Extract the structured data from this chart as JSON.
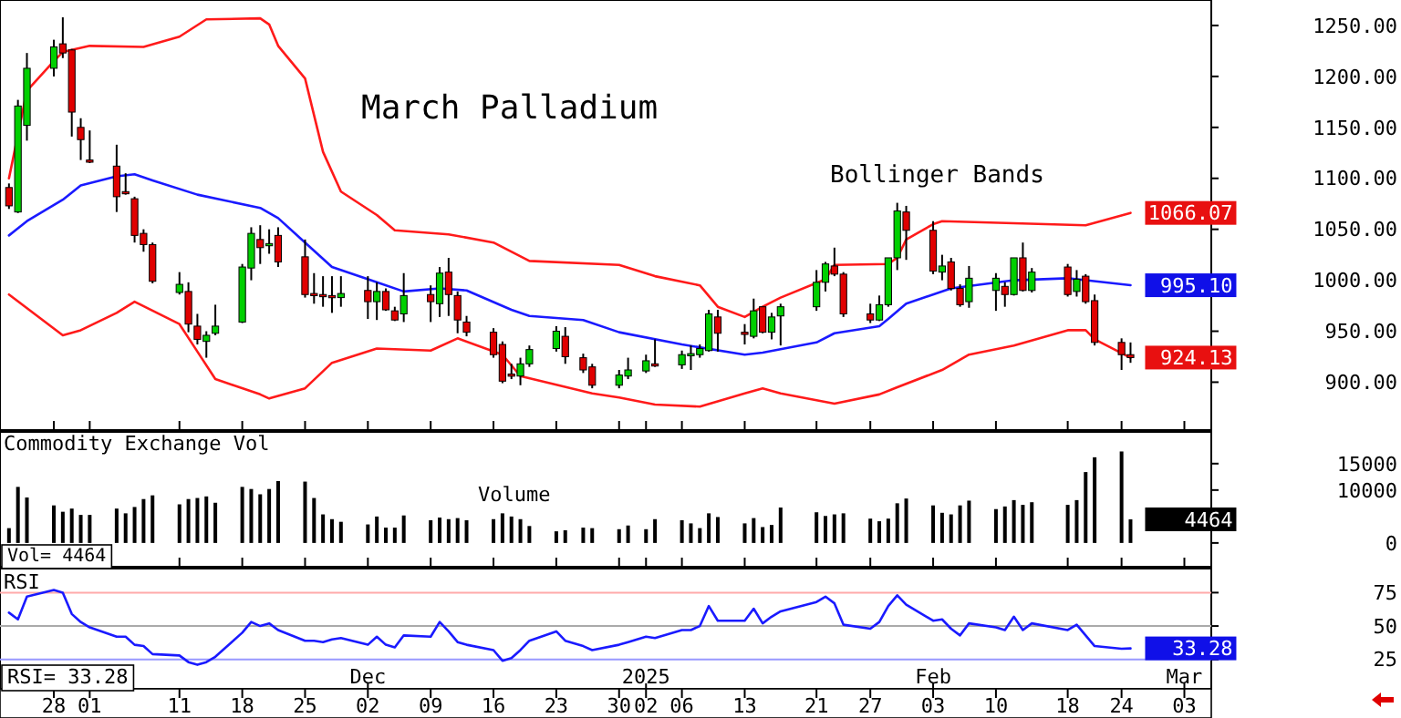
{
  "chart_data": [
    {
      "type": "candlestick",
      "title": "March Palladium",
      "annotations": [
        "Bollinger Bands",
        {
          "text": "1066.07",
          "x": "2025-02-25",
          "y": 1066.07
        },
        {
          "text": "995.10",
          "x": "2025-02-25",
          "y": 995.1
        },
        {
          "text": "924.13",
          "x": "2025-02-25",
          "y": 924.13
        }
      ],
      "x": [
        "2024-10-23",
        "2024-10-24",
        "2024-10-25",
        "2024-10-28",
        "2024-10-29",
        "2024-10-30",
        "2024-10-31",
        "2024-11-01",
        "2024-11-04",
        "2024-11-05",
        "2024-11-06",
        "2024-11-07",
        "2024-11-08",
        "2024-11-11",
        "2024-11-12",
        "2024-11-13",
        "2024-11-14",
        "2024-11-15",
        "2024-11-18",
        "2024-11-19",
        "2024-11-20",
        "2024-11-21",
        "2024-11-22",
        "2024-11-25",
        "2024-11-26",
        "2024-11-27",
        "2024-11-28",
        "2024-11-29",
        "2024-12-02",
        "2024-12-03",
        "2024-12-04",
        "2024-12-05",
        "2024-12-06",
        "2024-12-09",
        "2024-12-10",
        "2024-12-11",
        "2024-12-12",
        "2024-12-13",
        "2024-12-16",
        "2024-12-17",
        "2024-12-18",
        "2024-12-19",
        "2024-12-20",
        "2024-12-23",
        "2024-12-24",
        "2024-12-26",
        "2024-12-27",
        "2024-12-30",
        "2024-12-31",
        "2025-01-02",
        "2025-01-03",
        "2025-01-06",
        "2025-01-07",
        "2025-01-08",
        "2025-01-09",
        "2025-01-10",
        "2025-01-13",
        "2025-01-14",
        "2025-01-15",
        "2025-01-16",
        "2025-01-17",
        "2025-01-21",
        "2025-01-22",
        "2025-01-23",
        "2025-01-24",
        "2025-01-27",
        "2025-01-28",
        "2025-01-29",
        "2025-01-30",
        "2025-01-31",
        "2025-02-03",
        "2025-02-04",
        "2025-02-05",
        "2025-02-06",
        "2025-02-07",
        "2025-02-10",
        "2025-02-11",
        "2025-02-12",
        "2025-02-13",
        "2025-02-14",
        "2025-02-18",
        "2025-02-19",
        "2025-02-20",
        "2025-02-21",
        "2025-02-24",
        "2025-02-25"
      ],
      "ohlc": [
        [
          1091,
          1095,
          1070,
          1073
        ],
        [
          1067,
          1177,
          1066,
          1171
        ],
        [
          1152,
          1223,
          1137,
          1208
        ],
        [
          1208,
          1236,
          1200,
          1229
        ],
        [
          1232,
          1258,
          1218,
          1223
        ],
        [
          1226,
          1227,
          1141,
          1165
        ],
        [
          1150,
          1159,
          1118,
          1138
        ],
        [
          1118,
          1147,
          1115,
          1116
        ],
        [
          1112,
          1133,
          1067,
          1082
        ],
        [
          1087,
          1105,
          1084,
          1085
        ],
        [
          1080,
          1082,
          1037,
          1044
        ],
        [
          1046,
          1050,
          1028,
          1035
        ],
        [
          1035,
          1037,
          997,
          999
        ],
        [
          988,
          1008,
          986,
          996
        ],
        [
          989,
          998,
          949,
          957
        ],
        [
          955,
          967,
          937,
          942
        ],
        [
          940,
          950,
          924,
          946
        ],
        [
          948,
          976,
          946,
          955
        ],
        [
          959,
          1016,
          958,
          1013
        ],
        [
          1012,
          1052,
          1000,
          1046
        ],
        [
          1040,
          1054,
          1016,
          1032
        ],
        [
          1034,
          1050,
          1026,
          1036
        ],
        [
          1044,
          1052,
          1013,
          1018
        ],
        [
          1023,
          1040,
          983,
          986
        ],
        [
          987,
          1007,
          977,
          985
        ],
        [
          986,
          1004,
          974,
          984
        ],
        [
          985,
          1004,
          968,
          983
        ],
        [
          983,
          1004,
          974,
          987
        ],
        [
          990,
          1004,
          962,
          979
        ],
        [
          979,
          998,
          961,
          989
        ],
        [
          989,
          992,
          970,
          971
        ],
        [
          970,
          974,
          960,
          961
        ],
        [
          967,
          1007,
          959,
          985
        ],
        [
          986,
          995,
          959,
          979
        ],
        [
          977,
          1013,
          964,
          1007
        ],
        [
          1008,
          1022,
          965,
          986
        ],
        [
          985,
          989,
          948,
          961
        ],
        [
          959,
          965,
          945,
          949
        ],
        [
          949,
          953,
          924,
          927
        ],
        [
          937,
          940,
          899,
          901
        ],
        [
          908,
          918,
          903,
          907
        ],
        [
          906,
          924,
          897,
          918
        ],
        [
          918,
          936,
          915,
          932
        ],
        [
          933,
          955,
          930,
          950
        ],
        [
          945,
          954,
          918,
          925
        ],
        [
          924,
          928,
          909,
          912
        ],
        [
          915,
          918,
          894,
          897
        ],
        [
          897,
          912,
          894,
          907
        ],
        [
          906,
          924,
          903,
          912
        ],
        [
          911,
          927,
          909,
          921
        ],
        [
          918,
          942,
          915,
          916
        ],
        [
          917,
          931,
          913,
          927
        ],
        [
          926,
          936,
          912,
          928
        ],
        [
          927,
          937,
          924,
          933
        ],
        [
          931,
          971,
          930,
          967
        ],
        [
          964,
          971,
          930,
          948
        ],
        [
          949,
          957,
          937,
          947
        ],
        [
          945,
          982,
          943,
          970
        ],
        [
          974,
          974,
          948,
          949
        ],
        [
          949,
          968,
          942,
          964
        ],
        [
          965,
          977,
          936,
          974
        ],
        [
          974,
          1010,
          970,
          998
        ],
        [
          998,
          1018,
          989,
          1016
        ],
        [
          1014,
          1032,
          1004,
          1006
        ],
        [
          1006,
          1008,
          964,
          967
        ],
        [
          967,
          977,
          958,
          961
        ],
        [
          961,
          985,
          960,
          976
        ],
        [
          976,
          1022,
          974,
          1022
        ],
        [
          1022,
          1076,
          1010,
          1068
        ],
        [
          1067,
          1073,
          1020,
          1049
        ],
        [
          1049,
          1058,
          1006,
          1009
        ],
        [
          1008,
          1025,
          1000,
          1014
        ],
        [
          1018,
          1022,
          990,
          992
        ],
        [
          992,
          996,
          974,
          976
        ],
        [
          979,
          1014,
          973,
          1002
        ],
        [
          990,
          1007,
          970,
          1002
        ],
        [
          994,
          998,
          974,
          986
        ],
        [
          986,
          1022,
          985,
          1022
        ],
        [
          1022,
          1037,
          989,
          990
        ],
        [
          990,
          1012,
          988,
          1008
        ],
        [
          1013,
          1016,
          984,
          986
        ],
        [
          989,
          1010,
          984,
          1001
        ],
        [
          1004,
          1006,
          977,
          979
        ],
        [
          980,
          986,
          936,
          939
        ],
        [
          939,
          943,
          912,
          927
        ],
        [
          927,
          939,
          919,
          924.13
        ]
      ],
      "series": [
        {
          "type": "line",
          "color": "#ff1a1a",
          "x": [
            "2024-10-23",
            "2024-10-25",
            "2024-10-28",
            "2024-10-29",
            "2024-11-01",
            "2024-11-07",
            "2024-11-11",
            "2024-11-14",
            "2024-11-20",
            "2024-11-21",
            "2024-11-22",
            "2024-11-25",
            "2024-11-27",
            "2024-11-29",
            "2024-12-03",
            "2024-12-05",
            "2024-12-11",
            "2024-12-16",
            "2024-12-20",
            "2024-12-30",
            "2025-01-03",
            "2025-01-08",
            "2025-01-10",
            "2025-01-13",
            "2025-01-15",
            "2025-01-17",
            "2025-01-22",
            "2025-01-23",
            "2025-01-29",
            "2025-01-30",
            "2025-01-31",
            "2025-02-03",
            "2025-02-04",
            "2025-02-12",
            "2025-02-20",
            "2025-02-25"
          ],
          "values": [
            1100,
            1186,
            1215,
            1224,
            1230,
            1229,
            1239,
            1256,
            1257,
            1251,
            1230,
            1198,
            1126,
            1087,
            1064,
            1049,
            1045,
            1037,
            1019,
            1015,
            1004,
            995,
            974,
            964,
            974,
            983,
            1001,
            1015,
            1016,
            1022,
            1040,
            1055,
            1058,
            1056,
            1054,
            1066.07
          ]
        },
        {
          "type": "line",
          "color": "#1a1aff",
          "x": [
            "2024-10-23",
            "2024-10-25",
            "2024-10-29",
            "2024-10-31",
            "2024-11-04",
            "2024-11-06",
            "2024-11-08",
            "2024-11-13",
            "2024-11-20",
            "2024-11-22",
            "2024-11-25",
            "2024-11-28",
            "2024-12-03",
            "2024-12-06",
            "2024-12-10",
            "2024-12-13",
            "2024-12-18",
            "2024-12-20",
            "2024-12-26",
            "2024-12-30",
            "2025-01-06",
            "2025-01-13",
            "2025-01-15",
            "2025-01-21",
            "2025-01-23",
            "2025-01-28",
            "2025-01-29",
            "2025-01-31",
            "2025-02-05",
            "2025-02-12",
            "2025-02-18",
            "2025-02-20",
            "2025-02-25"
          ],
          "values": [
            1044,
            1058,
            1079,
            1093,
            1102,
            1104,
            1098,
            1084,
            1071,
            1061,
            1037,
            1013,
            998,
            989,
            992,
            990,
            971,
            965,
            961,
            949,
            937,
            927,
            929,
            939,
            948,
            955,
            962,
            977,
            992,
            1000,
            1002,
            1000,
            995.1
          ]
        },
        {
          "type": "line",
          "color": "#ff1a1a",
          "x": [
            "2024-10-23",
            "2024-10-29",
            "2024-10-31",
            "2024-11-04",
            "2024-11-06",
            "2024-11-11",
            "2024-11-13",
            "2024-11-15",
            "2024-11-20",
            "2024-11-21",
            "2024-11-25",
            "2024-11-28",
            "2024-12-03",
            "2024-12-09",
            "2024-12-12",
            "2024-12-17",
            "2024-12-19",
            "2024-12-27",
            "2024-12-30",
            "2025-01-03",
            "2025-01-08",
            "2025-01-13",
            "2025-01-15",
            "2025-01-17",
            "2025-01-23",
            "2025-01-28",
            "2025-01-30",
            "2025-02-04",
            "2025-02-07",
            "2025-02-12",
            "2025-02-18",
            "2025-02-20",
            "2025-02-21",
            "2025-02-25"
          ],
          "values": [
            986,
            946,
            951,
            968,
            979,
            957,
            930,
            903,
            888,
            884,
            894,
            919,
            933,
            931,
            943,
            927,
            906,
            889,
            885,
            878,
            876,
            889,
            894,
            889,
            879,
            888,
            895,
            912,
            927,
            936,
            951,
            951,
            942,
            924
          ]
        }
      ],
      "xlim": [
        "2024-10-22",
        "2025-03-06"
      ],
      "ylim": [
        853,
        1275
      ],
      "xticks": [
        {
          "value": "2024-10-28",
          "label": null
        },
        {
          "value": "2024-11-01",
          "label": null
        },
        {
          "value": "2024-11-11",
          "label": null
        },
        {
          "value": "2024-11-18",
          "label": null
        },
        {
          "value": "2024-11-25",
          "label": null
        },
        {
          "value": "2024-12-02",
          "label": null
        },
        {
          "value": "2024-12-09",
          "label": null
        },
        {
          "value": "2024-12-16",
          "label": null
        },
        {
          "value": "2024-12-23",
          "label": null
        },
        {
          "value": "2024-12-30",
          "label": null
        },
        {
          "value": "2025-01-02",
          "label": null
        },
        {
          "value": "2025-01-06",
          "label": null
        },
        {
          "value": "2025-01-13",
          "label": null
        },
        {
          "value": "2025-01-21",
          "label": null
        },
        {
          "value": "2025-01-27",
          "label": null
        },
        {
          "value": "2025-02-03",
          "label": null
        },
        {
          "value": "2025-02-10",
          "label": null
        },
        {
          "value": "2025-02-18",
          "label": null
        },
        {
          "value": "2025-02-24",
          "label": null
        },
        {
          "value": "2025-03-03",
          "label": null
        }
      ],
      "yticks": [
        {
          "value": 900,
          "label": "900.00"
        },
        {
          "value": 950,
          "label": "950.00"
        },
        {
          "value": 1000,
          "label": "1000.00"
        },
        {
          "value": 1050,
          "label": "1050.00"
        },
        {
          "value": 1100,
          "label": "1100.00"
        },
        {
          "value": 1150,
          "label": "1150.00"
        },
        {
          "value": 1200,
          "label": "1200.00"
        },
        {
          "value": 1250,
          "label": "1250.00"
        }
      ],
      "tick_labels": "y"
    },
    {
      "type": "bar",
      "title": "Commodity Exchange Vol",
      "annotations": [
        "Volume",
        "Vol= 4464",
        {
          "text": "4464",
          "x": "2025-02-25",
          "y": 4464
        }
      ],
      "x": [
        "2024-10-23",
        "2024-10-24",
        "2024-10-25",
        "2024-10-28",
        "2024-10-29",
        "2024-10-30",
        "2024-10-31",
        "2024-11-01",
        "2024-11-04",
        "2024-11-05",
        "2024-11-06",
        "2024-11-07",
        "2024-11-08",
        "2024-11-11",
        "2024-11-12",
        "2024-11-13",
        "2024-11-14",
        "2024-11-15",
        "2024-11-18",
        "2024-11-19",
        "2024-11-20",
        "2024-11-21",
        "2024-11-22",
        "2024-11-25",
        "2024-11-26",
        "2024-11-27",
        "2024-11-28",
        "2024-11-29",
        "2024-12-02",
        "2024-12-03",
        "2024-12-04",
        "2024-12-05",
        "2024-12-06",
        "2024-12-09",
        "2024-12-10",
        "2024-12-11",
        "2024-12-12",
        "2024-12-13",
        "2024-12-16",
        "2024-12-17",
        "2024-12-18",
        "2024-12-19",
        "2024-12-20",
        "2024-12-23",
        "2024-12-24",
        "2024-12-26",
        "2024-12-27",
        "2024-12-30",
        "2024-12-31",
        "2025-01-02",
        "2025-01-03",
        "2025-01-06",
        "2025-01-07",
        "2025-01-08",
        "2025-01-09",
        "2025-01-10",
        "2025-01-13",
        "2025-01-14",
        "2025-01-15",
        "2025-01-16",
        "2025-01-17",
        "2025-01-21",
        "2025-01-22",
        "2025-01-23",
        "2025-01-24",
        "2025-01-27",
        "2025-01-28",
        "2025-01-29",
        "2025-01-30",
        "2025-01-31",
        "2025-02-03",
        "2025-02-04",
        "2025-02-05",
        "2025-02-06",
        "2025-02-07",
        "2025-02-10",
        "2025-02-11",
        "2025-02-12",
        "2025-02-13",
        "2025-02-14",
        "2025-02-18",
        "2025-02-19",
        "2025-02-20",
        "2025-02-21",
        "2025-02-24",
        "2025-02-25"
      ],
      "values": [
        2800,
        10600,
        8600,
        7100,
        5900,
        6500,
        5300,
        5300,
        6500,
        5600,
        6800,
        8300,
        9000,
        7300,
        8300,
        8500,
        8800,
        7600,
        10600,
        10200,
        9200,
        10200,
        11700,
        11600,
        8500,
        5400,
        4500,
        4000,
        3500,
        5000,
        2900,
        2900,
        5200,
        4300,
        4800,
        4500,
        4700,
        4300,
        4500,
        5600,
        5000,
        4500,
        3200,
        2200,
        2400,
        2900,
        2800,
        2600,
        3300,
        2600,
        4500,
        4300,
        3700,
        2800,
        5600,
        4900,
        3700,
        4700,
        3000,
        3400,
        6700,
        5800,
        5100,
        5400,
        5600,
        4600,
        4100,
        4600,
        7500,
        8400,
        7100,
        5700,
        5400,
        7100,
        8000,
        6400,
        6900,
        8100,
        7200,
        7700,
        7200,
        8100,
        13400,
        16200,
        17300,
        4464
      ],
      "color": "#000000",
      "xlim": [
        "2024-10-22",
        "2025-03-06"
      ],
      "ylim": [
        -4500,
        21000
      ],
      "xticks": [
        {
          "value": "2024-10-28",
          "label": null
        },
        {
          "value": "2024-11-01",
          "label": null
        },
        {
          "value": "2024-11-11",
          "label": null
        },
        {
          "value": "2024-11-18",
          "label": null
        },
        {
          "value": "2024-11-25",
          "label": null
        },
        {
          "value": "2024-12-02",
          "label": null
        },
        {
          "value": "2024-12-09",
          "label": null
        },
        {
          "value": "2024-12-16",
          "label": null
        },
        {
          "value": "2024-12-23",
          "label": null
        },
        {
          "value": "2024-12-30",
          "label": null
        },
        {
          "value": "2025-01-02",
          "label": null
        },
        {
          "value": "2025-01-06",
          "label": null
        },
        {
          "value": "2025-01-13",
          "label": null
        },
        {
          "value": "2025-01-21",
          "label": null
        },
        {
          "value": "2025-01-27",
          "label": null
        },
        {
          "value": "2025-02-03",
          "label": null
        },
        {
          "value": "2025-02-10",
          "label": null
        },
        {
          "value": "2025-02-18",
          "label": null
        },
        {
          "value": "2025-02-24",
          "label": null
        },
        {
          "value": "2025-03-03",
          "label": null
        }
      ],
      "yticks": [
        0,
        10000,
        15000
      ],
      "tick_labels": "y"
    },
    {
      "type": "line",
      "title": "RSI",
      "annotations": [
        "RSI= 33.28",
        {
          "text": "33.28",
          "x": "2025-02-25",
          "y": 33.28
        }
      ],
      "x": [
        "2024-10-23",
        "2024-10-24",
        "2024-10-25",
        "2024-10-28",
        "2024-10-29",
        "2024-10-30",
        "2024-10-31",
        "2024-11-01",
        "2024-11-04",
        "2024-11-05",
        "2024-11-06",
        "2024-11-07",
        "2024-11-08",
        "2024-11-11",
        "2024-11-12",
        "2024-11-13",
        "2024-11-14",
        "2024-11-15",
        "2024-11-18",
        "2024-11-19",
        "2024-11-20",
        "2024-11-21",
        "2024-11-22",
        "2024-11-25",
        "2024-11-26",
        "2024-11-27",
        "2024-11-28",
        "2024-11-29",
        "2024-12-02",
        "2024-12-03",
        "2024-12-04",
        "2024-12-05",
        "2024-12-06",
        "2024-12-09",
        "2024-12-10",
        "2024-12-11",
        "2024-12-12",
        "2024-12-13",
        "2024-12-16",
        "2024-12-17",
        "2024-12-18",
        "2024-12-19",
        "2024-12-20",
        "2024-12-23",
        "2024-12-24",
        "2024-12-26",
        "2024-12-27",
        "2024-12-30",
        "2024-12-31",
        "2025-01-02",
        "2025-01-03",
        "2025-01-06",
        "2025-01-07",
        "2025-01-08",
        "2025-01-09",
        "2025-01-10",
        "2025-01-13",
        "2025-01-14",
        "2025-01-15",
        "2025-01-16",
        "2025-01-17",
        "2025-01-21",
        "2025-01-22",
        "2025-01-23",
        "2025-01-24",
        "2025-01-27",
        "2025-01-28",
        "2025-01-29",
        "2025-01-30",
        "2025-01-31",
        "2025-02-03",
        "2025-02-04",
        "2025-02-05",
        "2025-02-06",
        "2025-02-07",
        "2025-02-10",
        "2025-02-11",
        "2025-02-12",
        "2025-02-13",
        "2025-02-14",
        "2025-02-18",
        "2025-02-19",
        "2025-02-20",
        "2025-02-21",
        "2025-02-24",
        "2025-02-25"
      ],
      "values": [
        60,
        55,
        72,
        77,
        75,
        59,
        53,
        49,
        42,
        42,
        36,
        35,
        29,
        28,
        23,
        21,
        23,
        27,
        45,
        53,
        50,
        52,
        47,
        39,
        39,
        38,
        40,
        41,
        36,
        42,
        36,
        34,
        43,
        42,
        53,
        46,
        38,
        36,
        32,
        24,
        26,
        32,
        39,
        46,
        39,
        35,
        32,
        36,
        38,
        42,
        41,
        47,
        47,
        50,
        65,
        54,
        54,
        63,
        52,
        57,
        61,
        68,
        72,
        67,
        51,
        48,
        53,
        65,
        73,
        66,
        54,
        55,
        48,
        43,
        52,
        49,
        47,
        57,
        47,
        52,
        47,
        51,
        43,
        35,
        33,
        33.28
      ],
      "color": "#1a1aff",
      "xlim": [
        "2024-10-22",
        "2025-03-06"
      ],
      "ylim": [
        3,
        93
      ],
      "yticks": [
        25,
        50,
        75
      ],
      "ref_lines": [
        {
          "axis": "y",
          "value": 75,
          "color": "#ffaaaa"
        },
        {
          "axis": "y",
          "value": 50,
          "color": "#aaaaaa"
        },
        {
          "axis": "y",
          "value": 25,
          "color": "#9999ff"
        }
      ],
      "xticks": [
        {
          "value": "2024-10-28",
          "label": "28"
        },
        {
          "value": "2024-11-01",
          "label": "01"
        },
        {
          "value": "2024-11-11",
          "label": "11"
        },
        {
          "value": "2024-11-18",
          "label": "18"
        },
        {
          "value": "2024-11-25",
          "label": "25"
        },
        {
          "value": "2024-12-02",
          "label": "02"
        },
        {
          "value": "2024-12-09",
          "label": "09"
        },
        {
          "value": "2024-12-16",
          "label": "16"
        },
        {
          "value": "2024-12-23",
          "label": "23"
        },
        {
          "value": "2024-12-30",
          "label": "30"
        },
        {
          "value": "2025-01-02",
          "label": "02"
        },
        {
          "value": "2025-01-06",
          "label": "06"
        },
        {
          "value": "2025-01-13",
          "label": "13"
        },
        {
          "value": "2025-01-21",
          "label": "21"
        },
        {
          "value": "2025-01-27",
          "label": "27"
        },
        {
          "value": "2025-02-03",
          "label": "03"
        },
        {
          "value": "2025-02-10",
          "label": "10"
        },
        {
          "value": "2025-02-18",
          "label": "18"
        },
        {
          "value": "2025-02-24",
          "label": "24"
        },
        {
          "value": "2025-03-03",
          "label": "03"
        }
      ],
      "x2lim": [
        "2024-10-22",
        "2025-03-06"
      ],
      "x2ticks": [
        {
          "value": "2024-12-02",
          "label": "Dec"
        },
        {
          "value": "2025-01-02",
          "label": "2025"
        },
        {
          "value": "2025-02-03",
          "label": "Feb"
        },
        {
          "value": "2025-03-03",
          "label": "Mar"
        }
      ]
    }
  ]
}
